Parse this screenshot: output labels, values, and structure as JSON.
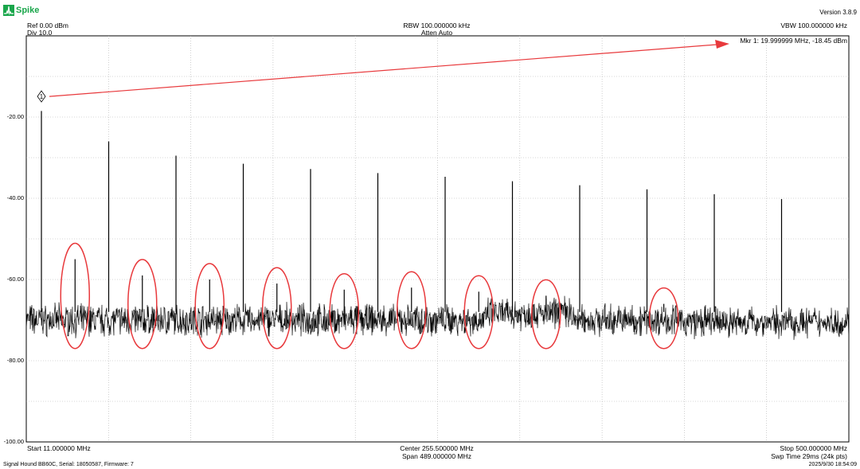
{
  "app": {
    "name": "Spike",
    "version": "Version 3.8.9"
  },
  "header": {
    "ref": "Ref 0.00 dBm",
    "div": "Div 10.0",
    "rbw": "RBW 100.000000 kHz",
    "atten": "Atten Auto",
    "vbw": "VBW 100.000000 kHz"
  },
  "marker": {
    "label": "1",
    "readout": "Mkr 1: 19.999999 MHz, -18.45 dBm",
    "freq_mhz": 19.999999,
    "level_dbm": -18.45
  },
  "footer": {
    "start": "Start 11.000000 MHz",
    "center": "Center 255.500000 MHz",
    "span": "Span 489.000000 MHz",
    "stop": "Stop 500.000000 MHz",
    "sweep": "Swp Time 29ms (24k pts)",
    "device": "Signal Hound BB60C, Serial: 18050587, Firmware: 7",
    "timestamp": "2025/9/30 18:54:09"
  },
  "chart_data": {
    "type": "line",
    "x_unit": "MHz",
    "y_unit": "dBm",
    "xlim": [
      11.0,
      500.0
    ],
    "ylim": [
      -100,
      0
    ],
    "grid": true,
    "y_ticks": [
      -20,
      -40,
      -60,
      -80,
      -100
    ],
    "y_tick_labels": [
      "-20.00",
      "-40.00",
      "-60.00",
      "-80.00",
      "-100.00"
    ],
    "noise_floor_dbm": -70,
    "series": [
      {
        "values": [
          [
            20.0,
            -18.5
          ],
          [
            60.0,
            -26.0
          ],
          [
            100.0,
            -29.5
          ],
          [
            140.0,
            -31.5
          ],
          [
            180.0,
            -32.8
          ],
          [
            220.0,
            -33.8
          ],
          [
            260.0,
            -34.7
          ],
          [
            300.0,
            -35.8
          ],
          [
            340.0,
            -36.8
          ],
          [
            380.0,
            -37.8
          ],
          [
            420.0,
            -39.0
          ],
          [
            460.0,
            -40.2
          ],
          [
            40.0,
            -55.0
          ],
          [
            80.0,
            -59.0
          ],
          [
            120.0,
            -60.0
          ],
          [
            160.0,
            -61.0
          ],
          [
            200.0,
            -62.5
          ],
          [
            240.0,
            -62.0
          ],
          [
            280.0,
            -63.0
          ],
          [
            320.0,
            -64.0
          ],
          [
            390.0,
            -66.0
          ]
        ]
      }
    ],
    "annotations": {
      "circled_spurs_mhz": [
        40,
        80,
        120,
        160,
        200,
        240,
        280,
        320,
        390
      ],
      "marker_arrow": "points from marker 1 to readout"
    }
  },
  "colors": {
    "trace": "#000000",
    "annotation": "#e8393c",
    "grid": "#b0b0b0",
    "brand": "#1aa64b"
  }
}
